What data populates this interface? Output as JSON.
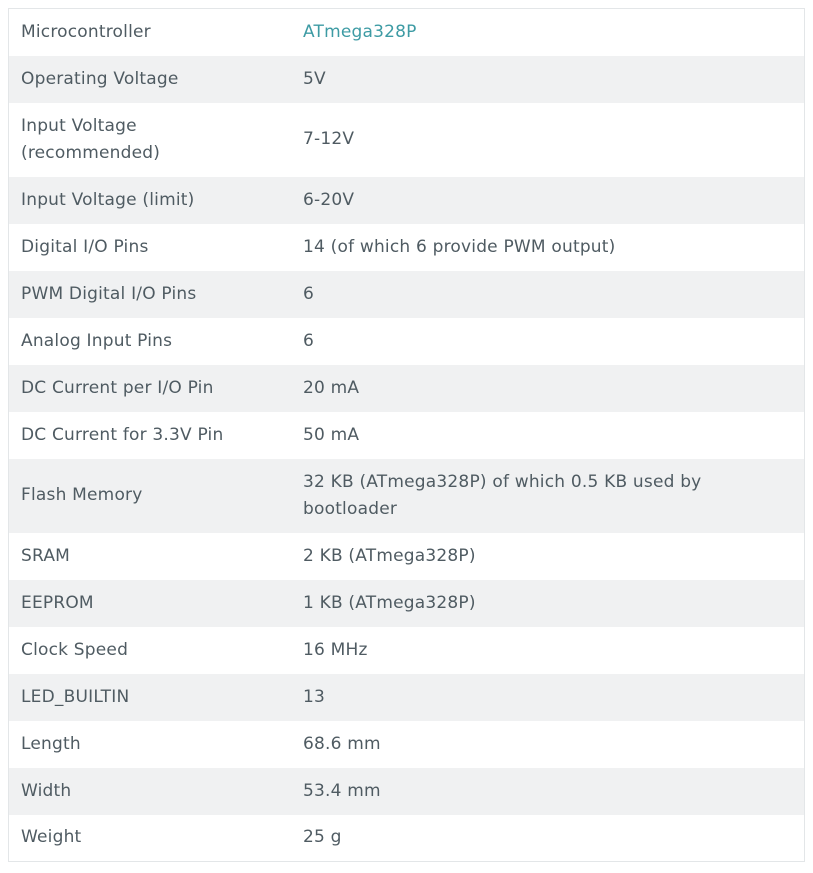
{
  "specs": [
    {
      "label": "Microcontroller",
      "value": "ATmega328P",
      "link": true
    },
    {
      "label": "Operating Voltage",
      "value": "5V"
    },
    {
      "label": "Input Voltage (recommended)",
      "value": "7-12V"
    },
    {
      "label": "Input Voltage (limit)",
      "value": "6-20V"
    },
    {
      "label": "Digital I/O Pins",
      "value": "14 (of which 6 provide PWM output)"
    },
    {
      "label": "PWM Digital I/O Pins",
      "value": "6"
    },
    {
      "label": "Analog Input Pins",
      "value": "6"
    },
    {
      "label": "DC Current per I/O Pin",
      "value": "20 mA"
    },
    {
      "label": "DC Current for 3.3V Pin",
      "value": "50 mA"
    },
    {
      "label": "Flash Memory",
      "value": "32 KB (ATmega328P) of which 0.5 KB used by bootloader"
    },
    {
      "label": "SRAM",
      "value": "2 KB (ATmega328P)"
    },
    {
      "label": "EEPROM",
      "value": "1 KB (ATmega328P)"
    },
    {
      "label": "Clock Speed",
      "value": "16 MHz"
    },
    {
      "label": "LED_BUILTIN",
      "value": "13"
    },
    {
      "label": "Length",
      "value": "68.6 mm"
    },
    {
      "label": "Width",
      "value": "53.4 mm"
    },
    {
      "label": "Weight",
      "value": "25 g"
    }
  ],
  "colors": {
    "text": "#4f5b62",
    "link": "#3d9ba4",
    "stripe": "#f0f1f2",
    "border": "#e3e6e8"
  }
}
